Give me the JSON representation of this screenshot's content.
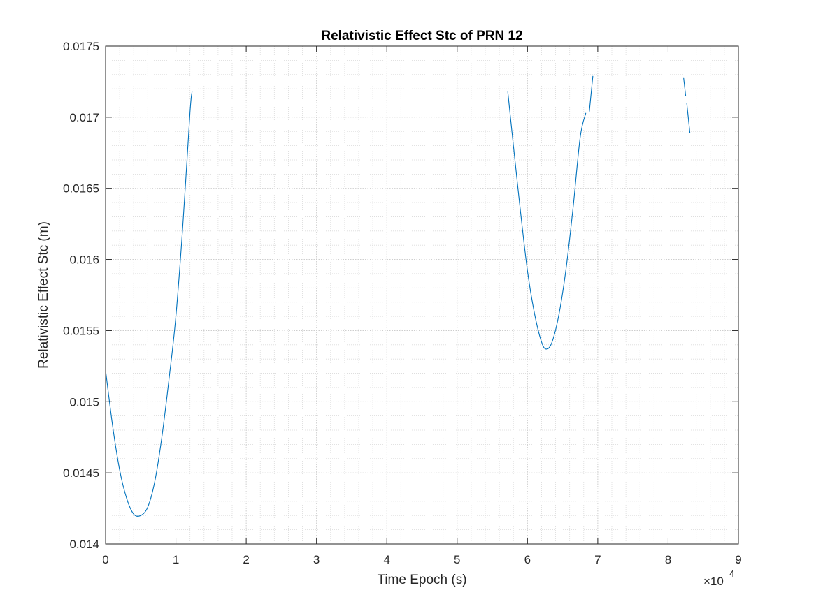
{
  "chart_data": {
    "type": "line",
    "title": "Relativistic Effect Stc of PRN 12",
    "xlabel": "Time Epoch (s)",
    "ylabel": "Relativistic Effect Stc (m)",
    "x_exponent_label": "×10",
    "x_exponent_power": "4",
    "x_scale": 10000,
    "xlim": [
      0,
      90000
    ],
    "ylim": [
      0.014,
      0.0175
    ],
    "x_ticks": [
      0,
      10000,
      20000,
      30000,
      40000,
      50000,
      60000,
      70000,
      80000,
      90000
    ],
    "x_tick_labels": [
      "0",
      "1",
      "2",
      "3",
      "4",
      "5",
      "6",
      "7",
      "8",
      "9"
    ],
    "y_ticks": [
      0.014,
      0.0145,
      0.015,
      0.0155,
      0.016,
      0.0165,
      0.017,
      0.0175
    ],
    "y_tick_labels": [
      "0.014",
      "0.0145",
      "0.015",
      "0.0155",
      "0.016",
      "0.0165",
      "0.017",
      "0.0175"
    ],
    "grid": true,
    "minor_grid": true,
    "series": [
      {
        "name": "Relativistic Effect Stc",
        "color": "#0072BD",
        "segments": [
          {
            "x": [
              0,
              1000,
              2000,
              3000,
              4000,
              5000,
              6000,
              7000,
              8000,
              9000,
              10000,
              11000,
              12000,
              12300
            ],
            "y": [
              0.01522,
              0.01483,
              0.01452,
              0.01432,
              0.01421,
              0.0142,
              0.01426,
              0.01444,
              0.01475,
              0.01515,
              0.0156,
              0.01625,
              0.01703,
              0.01718
            ]
          },
          {
            "x": [
              57200,
              58000,
              59000,
              60000,
              61000,
              62000,
              62700,
              63500,
              64500,
              65500,
              66500,
              67500,
              68300
            ],
            "y": [
              0.01718,
              0.0168,
              0.01634,
              0.01592,
              0.01562,
              0.01542,
              0.01537,
              0.01542,
              0.01562,
              0.01594,
              0.01637,
              0.01686,
              0.01703
            ]
          },
          {
            "x": [
              68800,
              69300
            ],
            "y": [
              0.01704,
              0.01729
            ]
          },
          {
            "x": [
              82200,
              82500
            ],
            "y": [
              0.01728,
              0.01715
            ]
          },
          {
            "x": [
              82650,
              83100
            ],
            "y": [
              0.0171,
              0.01689
            ]
          }
        ]
      }
    ]
  }
}
